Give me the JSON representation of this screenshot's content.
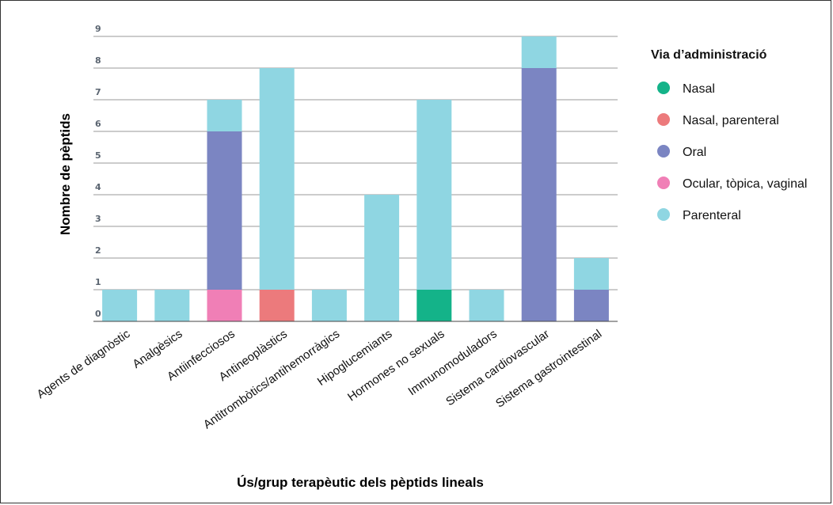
{
  "chart_data": {
    "type": "bar",
    "stacked": true,
    "title": "",
    "xlabel": "Ús/grup terapèutic dels pèptids lineals",
    "ylabel": "Nombre de pèptids",
    "ylim": [
      0,
      9
    ],
    "yticks": [
      "0",
      "1",
      "2",
      "3",
      "4",
      "5",
      "6",
      "7",
      "8",
      "9"
    ],
    "grid": true,
    "legend_position": "right",
    "legend_title": "Via d’administració",
    "categories": [
      "Agents de diagnòstic",
      "Analgèsics",
      "Antiinfecciosos",
      "Antineoplàstics",
      "Antitrombòtics/antihemorràgics",
      "Hipoglucemiants",
      "Hormones no sexuals",
      "Immunomoduladors",
      "Sistema cardiovascular",
      "Sistema gastrointestinal"
    ],
    "series": [
      {
        "name": "Nasal",
        "color": "#14b389",
        "values": [
          0,
          0,
          0,
          0,
          0,
          0,
          1,
          0,
          0,
          0
        ]
      },
      {
        "name": "Nasal, parenteral",
        "color": "#ec7a7c",
        "values": [
          0,
          0,
          0,
          1,
          0,
          0,
          0,
          0,
          0,
          0
        ]
      },
      {
        "name": "Oral",
        "color": "#7b85c2",
        "values": [
          0,
          0,
          5,
          0,
          0,
          0,
          0,
          0,
          8,
          1
        ]
      },
      {
        "name": "Ocular, tòpica, vaginal",
        "color": "#f07fb6",
        "values": [
          0,
          0,
          1,
          0,
          0,
          0,
          0,
          0,
          0,
          0
        ]
      },
      {
        "name": "Parenteral",
        "color": "#8fd6e2",
        "values": [
          1,
          1,
          1,
          7,
          1,
          4,
          6,
          1,
          1,
          1
        ]
      }
    ],
    "stack_order": [
      "Nasal",
      "Nasal, parenteral",
      "Ocular, tòpica, vaginal",
      "Oral",
      "Parenteral"
    ]
  }
}
